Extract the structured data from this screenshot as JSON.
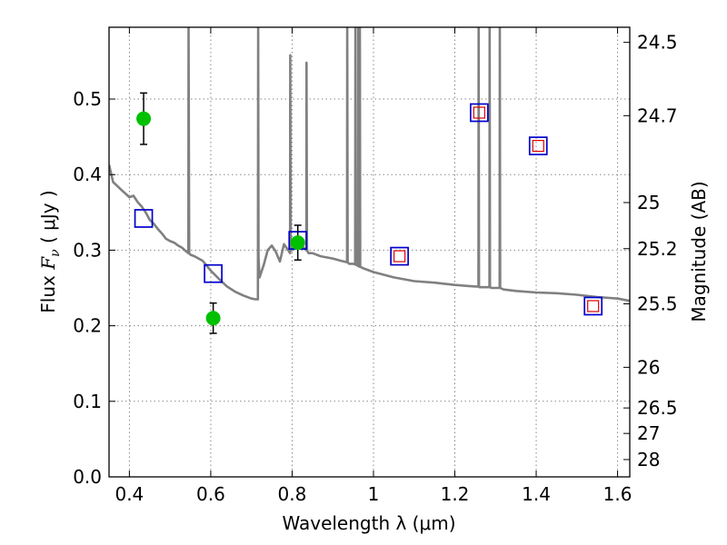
{
  "chart_data": {
    "type": "scatter",
    "xlabel": "Wavelength  λ (μm)",
    "ylabel_parts": [
      "Flux  ",
      "F",
      "ν",
      "  ( μJy )"
    ],
    "y2label": "Magnitude (AB)",
    "xlim": [
      0.35,
      1.63
    ],
    "ylim": [
      0.0,
      0.595
    ],
    "grid": true,
    "x_ticks": [
      0.4,
      0.6,
      0.8,
      1.0,
      1.2,
      1.4,
      1.6
    ],
    "x_tick_labels": [
      "0.4",
      "0.6",
      "0.8",
      "1",
      "1.2",
      "1.4",
      "1.6"
    ],
    "y_ticks": [
      0.0,
      0.1,
      0.2,
      0.3,
      0.4,
      0.5
    ],
    "y_tick_labels": [
      "0.0",
      "0.1",
      "0.2",
      "0.3",
      "0.4",
      "0.5"
    ],
    "mag_ticks": [
      {
        "label": "24.5",
        "flux": 0.575
      },
      {
        "label": "24.7",
        "flux": 0.478
      },
      {
        "label": "25",
        "flux": 0.363
      },
      {
        "label": "25.2",
        "flux": 0.302
      },
      {
        "label": "25.5",
        "flux": 0.229
      },
      {
        "label": "26",
        "flux": 0.145
      },
      {
        "label": "26.5",
        "flux": 0.0912
      },
      {
        "label": "27",
        "flux": 0.0575
      },
      {
        "label": "28",
        "flux": 0.0229
      }
    ],
    "colors": {
      "model": "#808080",
      "observed": "#00c000",
      "model_square": "#0000cc",
      "inner_square": "#dd0000",
      "errorbar": "#000000",
      "grid": "#888888"
    },
    "model_spectrum": {
      "x": [
        0.35,
        0.36,
        0.37,
        0.38,
        0.39,
        0.4,
        0.41,
        0.42,
        0.43,
        0.44,
        0.45,
        0.46,
        0.47,
        0.48,
        0.49,
        0.5,
        0.51,
        0.52,
        0.53,
        0.54,
        0.545,
        0.5455,
        0.547,
        0.55,
        0.56,
        0.58,
        0.6,
        0.62,
        0.64,
        0.66,
        0.68,
        0.7,
        0.71,
        0.716,
        0.7165,
        0.7175,
        0.72,
        0.73,
        0.74,
        0.75,
        0.76,
        0.77,
        0.78,
        0.79,
        0.795,
        0.7955,
        0.7965,
        0.8,
        0.81,
        0.82,
        0.83,
        0.835,
        0.8355,
        0.8365,
        0.84,
        0.85,
        0.87,
        0.9,
        0.92,
        0.935,
        0.9355,
        0.9365,
        0.94,
        0.95,
        0.955,
        0.9555,
        0.9565,
        0.96,
        0.962,
        0.9625,
        0.9635,
        0.966,
        0.9665,
        0.9675,
        0.975,
        1.0,
        1.05,
        1.1,
        1.15,
        1.2,
        1.25,
        1.258,
        1.2585,
        1.2595,
        1.26,
        1.285,
        1.2855,
        1.2865,
        1.29,
        1.31,
        1.3105,
        1.3115,
        1.32,
        1.35,
        1.4,
        1.45,
        1.5,
        1.55,
        1.6,
        1.63
      ],
      "y": [
        0.413,
        0.39,
        0.385,
        0.38,
        0.375,
        0.37,
        0.372,
        0.364,
        0.358,
        0.35,
        0.34,
        0.335,
        0.328,
        0.322,
        0.315,
        0.312,
        0.31,
        0.306,
        0.303,
        0.298,
        0.296,
        0.595,
        0.296,
        0.294,
        0.292,
        0.286,
        0.273,
        0.262,
        0.252,
        0.245,
        0.24,
        0.236,
        0.235,
        0.235,
        0.595,
        0.29,
        0.264,
        0.28,
        0.3,
        0.306,
        0.298,
        0.285,
        0.308,
        0.3,
        0.296,
        0.558,
        0.3,
        0.3,
        0.31,
        0.308,
        0.302,
        0.3,
        0.548,
        0.3,
        0.296,
        0.296,
        0.292,
        0.289,
        0.286,
        0.284,
        0.595,
        0.284,
        0.282,
        0.282,
        0.281,
        0.595,
        0.281,
        0.28,
        0.279,
        0.595,
        0.279,
        0.278,
        0.595,
        0.278,
        0.276,
        0.271,
        0.264,
        0.259,
        0.257,
        0.254,
        0.252,
        0.252,
        0.595,
        0.252,
        0.251,
        0.251,
        0.595,
        0.251,
        0.25,
        0.25,
        0.595,
        0.25,
        0.248,
        0.246,
        0.244,
        0.243,
        0.241,
        0.238,
        0.236,
        0.233
      ]
    },
    "observed": [
      {
        "x": 0.435,
        "y": 0.474,
        "yerr": 0.034
      },
      {
        "x": 0.606,
        "y": 0.21,
        "yerr": 0.02
      },
      {
        "x": 0.814,
        "y": 0.31,
        "yerr": 0.023
      }
    ],
    "model_photometry": [
      {
        "x": 0.435,
        "y": 0.342
      },
      {
        "x": 0.606,
        "y": 0.269
      },
      {
        "x": 0.814,
        "y": 0.313
      },
      {
        "x": 1.064,
        "y": 0.292
      },
      {
        "x": 1.26,
        "y": 0.482
      },
      {
        "x": 1.405,
        "y": 0.438
      },
      {
        "x": 1.54,
        "y": 0.226
      }
    ],
    "inner_squares": [
      {
        "x": 1.064,
        "y": 0.292
      },
      {
        "x": 1.26,
        "y": 0.482
      },
      {
        "x": 1.405,
        "y": 0.438
      },
      {
        "x": 1.54,
        "y": 0.226
      }
    ]
  }
}
